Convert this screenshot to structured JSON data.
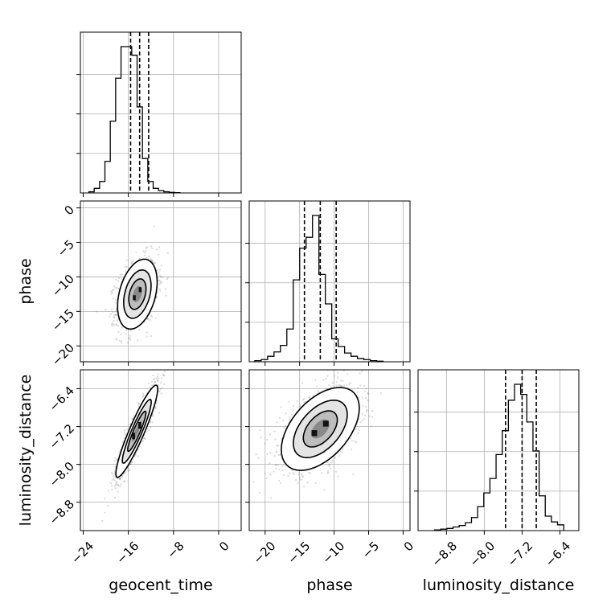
{
  "chart_data": {
    "type": "corner",
    "parameters": [
      "geocent_time",
      "phase",
      "luminosity_distance"
    ],
    "axis_labels": {
      "geocent_time": "geocent_time",
      "phase": "phase",
      "luminosity_distance": "luminosity_distance"
    },
    "ranges": {
      "geocent_time": [
        -24.5,
        4.0
      ],
      "phase": [
        -22.3,
        1.0
      ],
      "luminosity_distance": [
        -9.4,
        -6.0
      ]
    },
    "ticks": {
      "geocent_time": [
        {
          "value": -24,
          "label": "−24"
        },
        {
          "value": -16,
          "label": "−16"
        },
        {
          "value": -8,
          "label": "−8"
        },
        {
          "value": 0,
          "label": "0"
        }
      ],
      "phase": [
        {
          "value": -20,
          "label": "−20"
        },
        {
          "value": -15,
          "label": "−15"
        },
        {
          "value": -10,
          "label": "−10"
        },
        {
          "value": -5,
          "label": "−5"
        },
        {
          "value": 0,
          "label": "0"
        }
      ],
      "luminosity_distance": [
        {
          "value": -8.8,
          "label": "−8.8"
        },
        {
          "value": -8.0,
          "label": "−8.0"
        },
        {
          "value": -7.2,
          "label": "−7.2"
        },
        {
          "value": -6.4,
          "label": "−6.4"
        }
      ]
    },
    "quantiles": {
      "geocent_time": [
        -15.6,
        -14.0,
        -12.4
      ],
      "phase": [
        -14.3,
        -12.0,
        -9.7
      ],
      "luminosity_distance": [
        -7.55,
        -7.2,
        -6.9
      ]
    },
    "marginals": {
      "geocent_time": {
        "edges_start": -23.0,
        "bin_width": 0.95,
        "counts": [
          2,
          8,
          20,
          55,
          125,
          200,
          255,
          255,
          240,
          150,
          60,
          20,
          8,
          4,
          2,
          1,
          0.5
        ]
      },
      "phase": {
        "edges_start": -21.5,
        "bin_width": 0.93,
        "counts": [
          2,
          4,
          10,
          18,
          30,
          60,
          150,
          208,
          228,
          268,
          160,
          106,
          42,
          28,
          16,
          10,
          6,
          4,
          2,
          1
        ]
      },
      "luminosity_distance": {
        "edges_start": -9.05,
        "bin_width": 0.13,
        "counts": [
          1,
          2,
          3,
          5,
          7,
          11,
          18,
          33,
          52,
          72,
          105,
          138,
          180,
          202,
          188,
          150,
          110,
          48,
          20,
          12,
          8
        ]
      }
    },
    "joint": [
      {
        "x": "geocent_time",
        "y": "phase",
        "mean": [
          -14.4,
          -12.5
        ],
        "sd": [
          1.8,
          2.6
        ],
        "corr": 0.35
      },
      {
        "x": "geocent_time",
        "y": "luminosity_distance",
        "mean": [
          -14.5,
          -7.3
        ],
        "sd": [
          1.9,
          0.5
        ],
        "corr": 0.92
      },
      {
        "x": "phase",
        "y": "luminosity_distance",
        "mean": [
          -12.0,
          -7.25
        ],
        "sd": [
          2.9,
          0.45
        ],
        "corr": 0.5
      }
    ],
    "grid": true
  }
}
